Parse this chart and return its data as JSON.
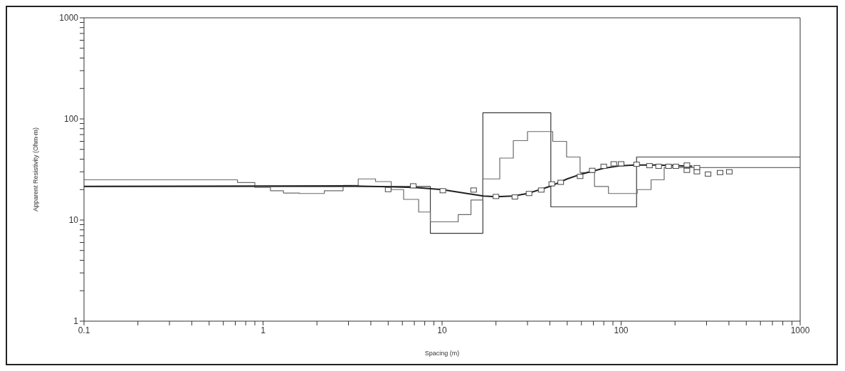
{
  "chart_data": {
    "type": "line",
    "xlabel": "Spacing (m)",
    "ylabel": "Apparent Resistivity (Ohm-m)",
    "log": "xy",
    "xlim": [
      0.1,
      1000
    ],
    "ylim": [
      1,
      1000
    ],
    "xticks": [
      0.1,
      {
        "value": 0.2,
        "label": null
      },
      {
        "value": 0.3,
        "label": null
      },
      {
        "value": 0.4,
        "label": null
      },
      {
        "value": 0.5,
        "label": null
      },
      {
        "value": 0.6,
        "label": null
      },
      {
        "value": 0.7,
        "label": null
      },
      {
        "value": 0.8,
        "label": null
      },
      {
        "value": 0.9,
        "label": null
      },
      1,
      {
        "value": 2,
        "label": null
      },
      {
        "value": 3,
        "label": null
      },
      {
        "value": 4,
        "label": null
      },
      {
        "value": 5,
        "label": null
      },
      {
        "value": 6,
        "label": null
      },
      {
        "value": 7,
        "label": null
      },
      {
        "value": 8,
        "label": null
      },
      {
        "value": 9,
        "label": null
      },
      10,
      {
        "value": 20,
        "label": null
      },
      {
        "value": 30,
        "label": null
      },
      {
        "value": 40,
        "label": null
      },
      {
        "value": 50,
        "label": null
      },
      {
        "value": 60,
        "label": null
      },
      {
        "value": 70,
        "label": null
      },
      {
        "value": 80,
        "label": null
      },
      {
        "value": 90,
        "label": null
      },
      100,
      {
        "value": 200,
        "label": null
      },
      {
        "value": 300,
        "label": null
      },
      {
        "value": 400,
        "label": null
      },
      {
        "value": 500,
        "label": null
      },
      {
        "value": 600,
        "label": null
      },
      {
        "value": 700,
        "label": null
      },
      {
        "value": 800,
        "label": null
      },
      {
        "value": 900,
        "label": null
      },
      1000
    ],
    "yticks": [
      1,
      {
        "value": 2,
        "label": null
      },
      {
        "value": 3,
        "label": null
      },
      {
        "value": 4,
        "label": null
      },
      {
        "value": 5,
        "label": null
      },
      {
        "value": 6,
        "label": null
      },
      {
        "value": 7,
        "label": null
      },
      {
        "value": 8,
        "label": null
      },
      {
        "value": 9,
        "label": null
      },
      10,
      {
        "value": 20,
        "label": null
      },
      {
        "value": 30,
        "label": null
      },
      {
        "value": 40,
        "label": null
      },
      {
        "value": 50,
        "label": null
      },
      {
        "value": 60,
        "label": null
      },
      {
        "value": 70,
        "label": null
      },
      {
        "value": 80,
        "label": null
      },
      {
        "value": 90,
        "label": null
      },
      100,
      {
        "value": 200,
        "label": null
      },
      {
        "value": 300,
        "label": null
      },
      {
        "value": 400,
        "label": null
      },
      {
        "value": 500,
        "label": null
      },
      {
        "value": 600,
        "label": null
      },
      {
        "value": 700,
        "label": null
      },
      {
        "value": 800,
        "label": null
      },
      {
        "value": 900,
        "label": null
      },
      1000
    ],
    "series": [
      {
        "type": "step",
        "color": "#3a3a3a",
        "marker": "none",
        "x": [
          0.1,
          8.6,
          16.9,
          40.5,
          122,
          1000
        ],
        "values": [
          21.5,
          7.4,
          115,
          13.5,
          42,
          42
        ]
      },
      {
        "type": "step",
        "color": "#6a6a6a",
        "marker": "none",
        "x": [
          0.1,
          0.72,
          0.9,
          1.1,
          1.3,
          1.6,
          2.2,
          2.8,
          3.4,
          4.25,
          5.2,
          6.1,
          7.4,
          8.6,
          12.3,
          14.5,
          16.9,
          21,
          25,
          30,
          41.5,
          49.6,
          59,
          71,
          85,
          123,
          147,
          174,
          1000
        ],
        "values": [
          25,
          23.5,
          21,
          19.5,
          18.5,
          18.3,
          19.5,
          22,
          25.5,
          24,
          20,
          16,
          12,
          9.6,
          11.3,
          15.8,
          25.5,
          41,
          61,
          75,
          60,
          42,
          29.5,
          21.5,
          18.3,
          20,
          25,
          33,
          33
        ]
      },
      {
        "color": "#222222",
        "marker": "none",
        "x": [
          0.1,
          3,
          5,
          7,
          10,
          14,
          17,
          20,
          25,
          30,
          40,
          50,
          60,
          80,
          100,
          120,
          160,
          250
        ],
        "values": [
          21.5,
          21.8,
          21.3,
          21,
          20,
          18.2,
          17.3,
          17,
          17.3,
          18.3,
          21.5,
          25.5,
          28.5,
          32.5,
          34.5,
          35,
          35,
          34
        ]
      },
      {
        "type": "scatter",
        "color": "#444444",
        "marker": "square",
        "x": [
          5,
          6.9,
          10.1,
          15,
          20,
          25.5,
          30.6,
          35.8,
          41,
          46,
          59,
          69,
          80,
          91,
          100,
          122,
          144,
          162,
          184,
          202,
          233,
          233,
          265,
          265,
          306,
          357,
          402
        ],
        "values": [
          20,
          21.8,
          19.5,
          19.8,
          17.1,
          16.9,
          18.3,
          19.8,
          22.8,
          23.6,
          27,
          31,
          34,
          36,
          36,
          35.6,
          34.5,
          34,
          34,
          34,
          35,
          31,
          33,
          30,
          28.5,
          29.5,
          30
        ]
      }
    ]
  }
}
